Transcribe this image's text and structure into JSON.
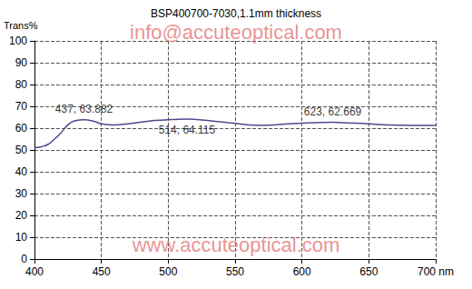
{
  "chart_data": {
    "type": "line",
    "title": "BSP400700-7030,1.1mm thickness",
    "y_label": "Trans%",
    "x": [
      400,
      405,
      410,
      415,
      420,
      425,
      430,
      437,
      445,
      450,
      460,
      470,
      480,
      490,
      500,
      514,
      525,
      540,
      550,
      560,
      570,
      580,
      590,
      600,
      610,
      623,
      635,
      650,
      660,
      670,
      680,
      690,
      700
    ],
    "values": [
      51,
      51.5,
      52.5,
      55,
      58,
      61.5,
      63.3,
      63.882,
      63,
      62,
      61.5,
      62,
      62.8,
      63.5,
      63.9,
      64.115,
      63.8,
      62.8,
      62.2,
      61.5,
      61.3,
      61.5,
      62,
      62.3,
      62.5,
      62.669,
      62.4,
      62,
      61.6,
      61.4,
      61.3,
      61.2,
      61.2
    ],
    "color": "#4b4b8f",
    "xlim": [
      400,
      700
    ],
    "ylim": [
      0,
      100
    ],
    "xticks": [
      400,
      450,
      500,
      550,
      600,
      650,
      {
        "value": 700,
        "label": "700 nm"
      }
    ],
    "yticks": [
      0,
      10,
      20,
      30,
      40,
      50,
      60,
      70,
      80,
      90,
      100
    ],
    "grid": true,
    "annotations": [
      {
        "x": 437,
        "y": 63.882,
        "text": "437, 63.882",
        "position": "top"
      },
      {
        "x": 514,
        "y": 64.115,
        "text": "514, 64.115",
        "position": "bottom"
      },
      {
        "x": 623,
        "y": 62.669,
        "text": "623, 62.669",
        "position": "top"
      }
    ],
    "watermarks": [
      {
        "text": "info@accuteoptical.com",
        "color": "#e07070",
        "position": "top"
      },
      {
        "text": "www.accuteoptical.com",
        "color": "#e07070",
        "position": "bottom"
      }
    ]
  }
}
